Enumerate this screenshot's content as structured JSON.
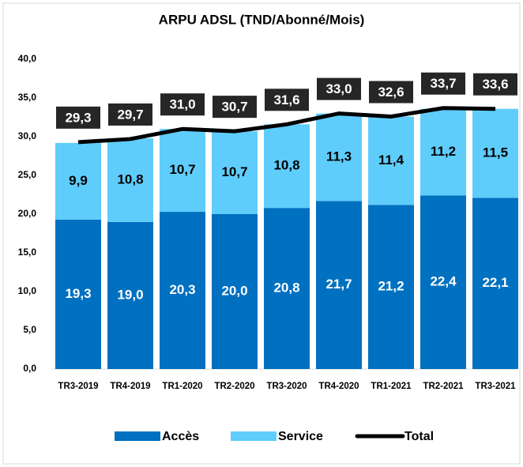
{
  "chart_data": {
    "type": "bar",
    "stacked": true,
    "title": "ARPU ADSL  (TND/Abonné/Mois)",
    "categories": [
      "TR3-2019",
      "TR4-2019",
      "TR1-2020",
      "TR2-2020",
      "TR3-2020",
      "TR4-2020",
      "TR1-2021",
      "TR2-2021",
      "TR3-2021"
    ],
    "series": [
      {
        "name": "Accès",
        "type": "bar",
        "color": "#0070c0",
        "values": [
          19.3,
          19.0,
          20.3,
          20.0,
          20.8,
          21.7,
          21.2,
          22.4,
          22.1
        ],
        "value_labels": [
          "19,3",
          "19,0",
          "20,3",
          "20,0",
          "20,8",
          "21,7",
          "21,2",
          "22,4",
          "22,1"
        ]
      },
      {
        "name": "Service",
        "type": "bar",
        "color": "#5fcdfb",
        "values": [
          9.9,
          10.8,
          10.7,
          10.7,
          10.8,
          11.3,
          11.4,
          11.2,
          11.5
        ],
        "value_labels": [
          "9,9",
          "10,8",
          "10,7",
          "10,7",
          "10,8",
          "11,3",
          "11,4",
          "11,2",
          "11,5"
        ]
      },
      {
        "name": "Total",
        "type": "line",
        "color": "#000000",
        "values": [
          29.3,
          29.7,
          31.0,
          30.7,
          31.6,
          33.0,
          32.6,
          33.7,
          33.6
        ],
        "value_labels": [
          "29,3",
          "29,7",
          "31,0",
          "30,7",
          "31,6",
          "33,0",
          "32,6",
          "33,7",
          "33,6"
        ]
      }
    ],
    "ylim": [
      0,
      40
    ],
    "yticks": [
      {
        "value": 0,
        "label": "0,0"
      },
      {
        "value": 5,
        "label": "5,0"
      },
      {
        "value": 10,
        "label": "10,0"
      },
      {
        "value": 15,
        "label": "15,0"
      },
      {
        "value": 20,
        "label": "20,0"
      },
      {
        "value": 25,
        "label": "25,0"
      },
      {
        "value": 30,
        "label": "30,0"
      },
      {
        "value": 35,
        "label": "35,0"
      },
      {
        "value": 40,
        "label": "40,0"
      }
    ],
    "grid": false,
    "legend": "bottom"
  }
}
